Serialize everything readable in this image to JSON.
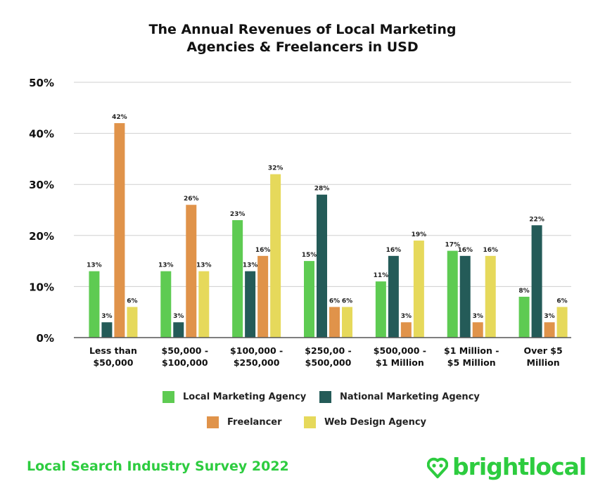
{
  "chart_data": {
    "type": "bar",
    "title": [
      "The Annual Revenues of Local Marketing",
      "Agencies & Freelancers in USD"
    ],
    "categories": [
      [
        "Less than",
        "$50,000"
      ],
      [
        "$50,000 -",
        "$100,000"
      ],
      [
        "$100,000 -",
        "$250,000"
      ],
      [
        "$250,00 -",
        "$500,000"
      ],
      [
        "$500,000 -",
        "$1 Million"
      ],
      [
        "$1 Million -",
        "$5 Million"
      ],
      [
        "Over $5",
        "Million"
      ]
    ],
    "series": [
      {
        "name": "Local Marketing Agency",
        "color": "#5ecb52",
        "values": [
          13,
          13,
          23,
          15,
          11,
          17,
          8
        ]
      },
      {
        "name": "National Marketing Agency",
        "color": "#245b58",
        "values": [
          3,
          3,
          13,
          28,
          16,
          16,
          22
        ]
      },
      {
        "name": "Freelancer",
        "color": "#e0934a",
        "values": [
          42,
          26,
          16,
          6,
          3,
          3,
          3
        ]
      },
      {
        "name": "Web Design Agency",
        "color": "#e6d95b",
        "values": [
          6,
          13,
          32,
          6,
          19,
          16,
          6
        ]
      }
    ],
    "ylim": [
      0,
      50
    ],
    "yticks": [
      "0%",
      "10%",
      "20%",
      "30%",
      "40%",
      "50%"
    ],
    "value_suffix": "%",
    "grid": true,
    "legend_position": "bottom"
  },
  "footer": {
    "survey": "Local Search Industry Survey 2022",
    "brand": "brightlocal",
    "brand_color": "#2dcc3f"
  }
}
